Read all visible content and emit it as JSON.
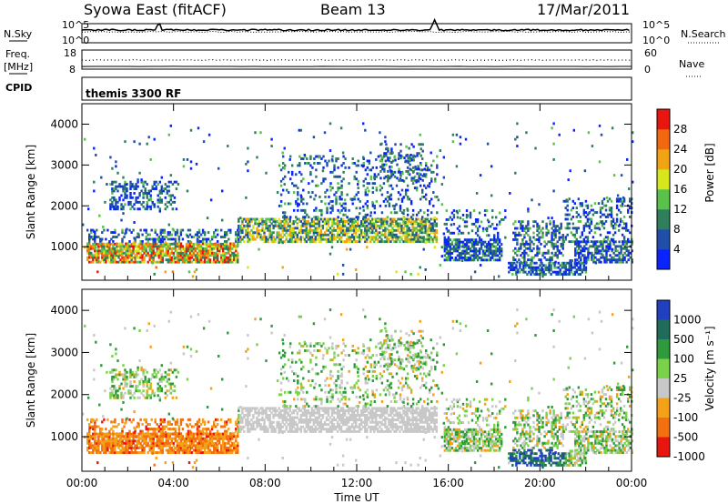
{
  "header": {
    "title": "Syowa East (fitACF)",
    "beam": "Beam 13",
    "date": "17/Mar/2011"
  },
  "top_panels": {
    "nsky_label": "N.Sky",
    "nsky_ticks": [
      "10^5",
      "10^0"
    ],
    "nsearch_label": "N.Search",
    "nsearch_ticks": [
      "10^5",
      "10^0"
    ],
    "freq_label": "Freq.",
    "freq_unit": "[MHz]",
    "freq_ticks": [
      "18",
      "8"
    ],
    "nave_label": "Nave",
    "nave_ticks": [
      "60",
      "0"
    ],
    "cpid_label": "CPID",
    "cpid_text": "themis 3300 RF"
  },
  "chart_data": [
    {
      "type": "heatmap",
      "title": "",
      "xlabel": "",
      "ylabel": "Slant Range [km]",
      "xlim": [
        0,
        24
      ],
      "ylim": [
        180,
        4500
      ],
      "yticks": [
        1000,
        2000,
        3000,
        4000
      ],
      "colorbar": {
        "label": "Power [dB]",
        "ticks": [
          "4",
          "8",
          "12",
          "16",
          "20",
          "24",
          "28"
        ],
        "colors": [
          "#0a24ff",
          "#1f4fa8",
          "#2f7e5c",
          "#58c24a",
          "#d8e61c",
          "#f2a313",
          "#f26810",
          "#e8160f"
        ]
      }
    },
    {
      "type": "heatmap",
      "title": "",
      "xlabel": "Time UT",
      "ylabel": "Slant Range [km]",
      "xlim": [
        0,
        24
      ],
      "ylim": [
        180,
        4500
      ],
      "xticks": [
        "00:00",
        "04:00",
        "08:00",
        "12:00",
        "16:00",
        "20:00",
        "00:00"
      ],
      "yticks": [
        1000,
        2000,
        3000,
        4000
      ],
      "colorbar": {
        "label": "Velocity [m s⁻¹]",
        "ticks": [
          "1000",
          "500",
          "100",
          "25",
          "-25",
          "-100",
          "-500",
          "-1000"
        ],
        "colors": [
          "#2040c0",
          "#1f6c5a",
          "#2e9a3c",
          "#7ad14a",
          "#c8c8c8",
          "#f4a11a",
          "#f2700f",
          "#e8160f"
        ]
      }
    }
  ]
}
